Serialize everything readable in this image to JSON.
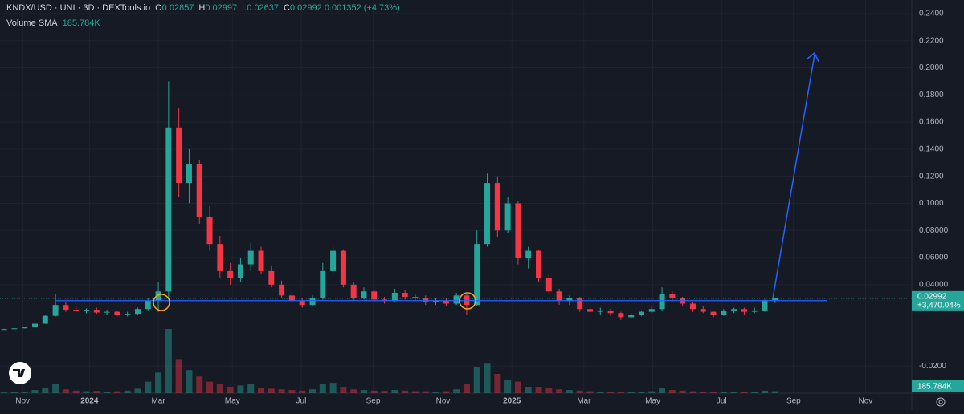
{
  "chart_data": {
    "type": "candlestick",
    "header": {
      "symbol": "KNDX/USD · UNI · 3D · DEXTools.io",
      "o_key": "O",
      "h_key": "H",
      "l_key": "L",
      "c_key": "C",
      "change": 0.001352,
      "change_pct": {
        "value": 4.73,
        "label": "(+4.73%)"
      }
    },
    "volume_sma_name": "Volume SMA",
    "volume_sma": {
      "value": 185784,
      "label": "185.784K"
    },
    "last_change": {
      "value": 3470.04,
      "label": "+3,470.04%"
    },
    "horizontal_line": 0.0282,
    "up_color": "#26a69a",
    "down_color": "#f23645",
    "line_color": "#2962ff",
    "grid": true,
    "xlim": [
      -0.4,
      88.3
    ],
    "xticks": [
      {
        "value": 1.8,
        "label": "Nov"
      },
      {
        "value": 8.3,
        "label": "2024"
      },
      {
        "value": 15.0,
        "label": "Mar"
      },
      {
        "value": 22.2,
        "label": "May"
      },
      {
        "value": 28.9,
        "label": "Jul"
      },
      {
        "value": 35.9,
        "label": "Sep"
      },
      {
        "value": 42.7,
        "label": "Nov"
      },
      {
        "value": 49.4,
        "label": "2025"
      },
      {
        "value": 56.4,
        "label": "Mar"
      },
      {
        "value": 63.1,
        "label": "May"
      },
      {
        "value": 69.8,
        "label": "Jul"
      },
      {
        "value": 76.8,
        "label": "Sep"
      },
      {
        "value": 83.8,
        "label": "Nov"
      }
    ],
    "ylim": [
      -0.04,
      0.25
    ],
    "yticks": [
      {
        "value": 0.24,
        "label": "0.2400"
      },
      {
        "value": 0.22,
        "label": "0.2200"
      },
      {
        "value": 0.2,
        "label": "0.2000"
      },
      {
        "value": 0.18,
        "label": "0.1800"
      },
      {
        "value": 0.16,
        "label": "0.1600"
      },
      {
        "value": 0.14,
        "label": "0.1400"
      },
      {
        "value": 0.12,
        "label": "0.1200"
      },
      {
        "value": 0.1,
        "label": "0.1000"
      },
      {
        "value": 0.08,
        "label": "0.08000"
      },
      {
        "value": 0.06,
        "label": "0.06000"
      },
      {
        "value": 0.04,
        "label": "0.04000"
      },
      {
        "value": -0.02,
        "label": "-0.0200"
      }
    ],
    "open": [
      0.007,
      0.0072,
      0.0078,
      0.0088,
      0.0112,
      0.017,
      0.025,
      0.0215,
      0.0205,
      0.0215,
      0.0195,
      0.02,
      0.018,
      0.0185,
      0.022,
      0.028,
      0.035,
      0.156,
      0.115,
      0.129,
      0.09,
      0.07,
      0.05,
      0.045,
      0.055,
      0.065,
      0.05,
      0.04,
      0.032,
      0.028,
      0.025,
      0.03,
      0.05,
      0.065,
      0.04,
      0.03,
      0.035,
      0.029,
      0.028,
      0.034,
      0.031,
      0.03,
      0.027,
      0.028,
      0.026,
      0.032,
      0.025,
      0.07,
      0.115,
      0.08,
      0.1,
      0.06,
      0.065,
      0.045,
      0.035,
      0.028,
      0.03,
      0.022,
      0.02,
      0.021,
      0.019,
      0.016,
      0.018,
      0.02,
      0.022,
      0.033,
      0.03,
      0.026,
      0.022,
      0.02,
      0.018,
      0.021,
      0.022,
      0.02,
      0.021,
      0.02857
    ],
    "high": [
      0.0075,
      0.008,
      0.009,
      0.0115,
      0.018,
      0.033,
      0.027,
      0.024,
      0.0225,
      0.023,
      0.0215,
      0.021,
      0.02,
      0.023,
      0.03,
      0.042,
      0.19,
      0.17,
      0.14,
      0.132,
      0.098,
      0.076,
      0.056,
      0.06,
      0.071,
      0.068,
      0.054,
      0.043,
      0.035,
      0.03,
      0.032,
      0.056,
      0.069,
      0.066,
      0.042,
      0.038,
      0.036,
      0.031,
      0.037,
      0.036,
      0.033,
      0.032,
      0.03,
      0.03,
      0.034,
      0.033,
      0.08,
      0.122,
      0.12,
      0.105,
      0.102,
      0.068,
      0.066,
      0.048,
      0.037,
      0.032,
      0.031,
      0.025,
      0.023,
      0.022,
      0.02,
      0.019,
      0.021,
      0.024,
      0.038,
      0.035,
      0.031,
      0.027,
      0.024,
      0.021,
      0.022,
      0.023,
      0.023,
      0.023,
      0.029,
      0.02997
    ],
    "low": [
      0.0068,
      0.0071,
      0.0077,
      0.0086,
      0.011,
      0.0165,
      0.02,
      0.0195,
      0.019,
      0.0185,
      0.018,
      0.017,
      0.0165,
      0.0175,
      0.021,
      0.02,
      0.03,
      0.105,
      0.1,
      0.085,
      0.065,
      0.045,
      0.04,
      0.042,
      0.05,
      0.048,
      0.038,
      0.03,
      0.026,
      0.023,
      0.024,
      0.029,
      0.048,
      0.038,
      0.028,
      0.029,
      0.027,
      0.026,
      0.027,
      0.029,
      0.028,
      0.025,
      0.025,
      0.024,
      0.025,
      0.018,
      0.024,
      0.068,
      0.075,
      0.078,
      0.055,
      0.052,
      0.042,
      0.033,
      0.025,
      0.025,
      0.02,
      0.018,
      0.018,
      0.017,
      0.014,
      0.015,
      0.017,
      0.019,
      0.021,
      0.028,
      0.024,
      0.02,
      0.019,
      0.016,
      0.017,
      0.019,
      0.018,
      0.019,
      0.02,
      0.02637
    ],
    "close": [
      0.0072,
      0.0078,
      0.0088,
      0.0112,
      0.017,
      0.025,
      0.0215,
      0.0205,
      0.0215,
      0.0195,
      0.02,
      0.018,
      0.0185,
      0.022,
      0.028,
      0.035,
      0.156,
      0.115,
      0.129,
      0.09,
      0.07,
      0.05,
      0.045,
      0.055,
      0.065,
      0.05,
      0.04,
      0.032,
      0.028,
      0.025,
      0.03,
      0.05,
      0.065,
      0.04,
      0.03,
      0.035,
      0.029,
      0.028,
      0.034,
      0.031,
      0.03,
      0.027,
      0.028,
      0.026,
      0.032,
      0.025,
      0.07,
      0.115,
      0.08,
      0.1,
      0.06,
      0.065,
      0.045,
      0.035,
      0.028,
      0.03,
      0.022,
      0.02,
      0.021,
      0.019,
      0.016,
      0.018,
      0.02,
      0.022,
      0.033,
      0.03,
      0.026,
      0.022,
      0.02,
      0.018,
      0.021,
      0.022,
      0.02,
      0.021,
      0.02857,
      0.02992
    ],
    "volume": [
      50000,
      80000,
      120000,
      250000,
      400000,
      700000,
      300000,
      200000,
      150000,
      180000,
      120000,
      150000,
      200000,
      350000,
      900000,
      1600000,
      5000000,
      2600000,
      1800000,
      1300000,
      900000,
      700000,
      500000,
      600000,
      700000,
      400000,
      350000,
      300000,
      250000,
      200000,
      300000,
      700000,
      800000,
      500000,
      300000,
      250000,
      200000,
      180000,
      250000,
      200000,
      150000,
      150000,
      120000,
      150000,
      300000,
      700000,
      2000000,
      2300000,
      1500000,
      1000000,
      900000,
      500000,
      500000,
      400000,
      300000,
      250000,
      200000,
      150000,
      120000,
      100000,
      120000,
      100000,
      120000,
      150000,
      400000,
      250000,
      200000,
      150000,
      120000,
      100000,
      120000,
      100000,
      90000,
      100000,
      200000,
      150000
    ]
  }
}
